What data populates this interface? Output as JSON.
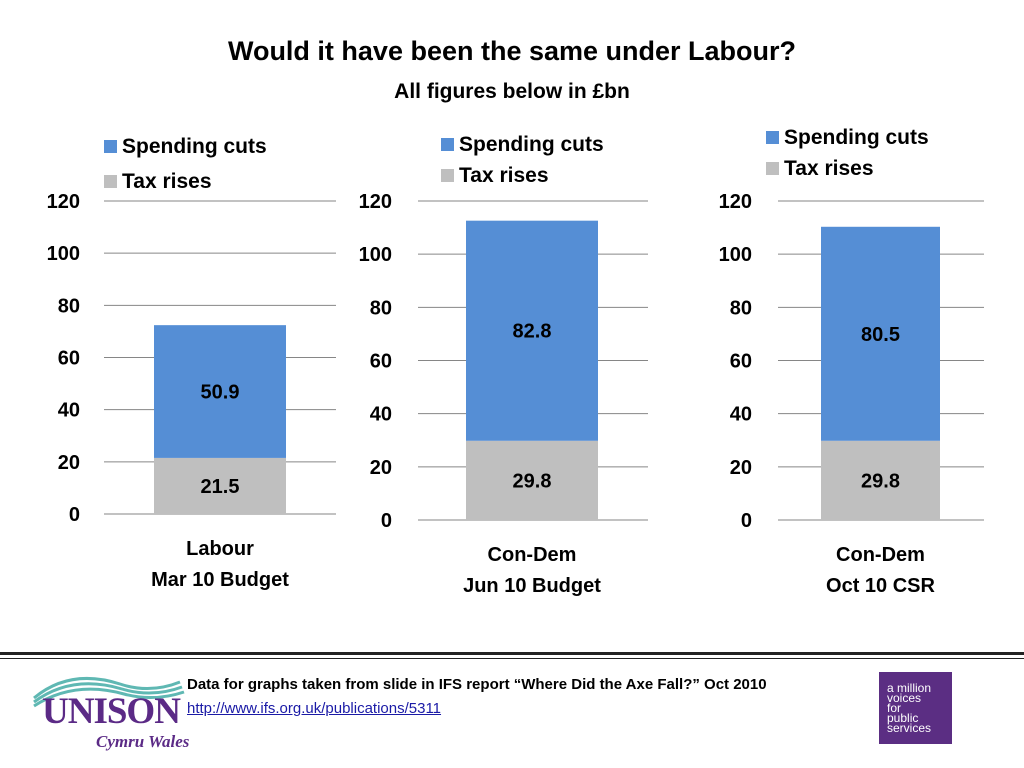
{
  "title": "Would it have been the same under Labour?",
  "subtitle": "All figures below in £bn",
  "colors": {
    "spending": "#558ed5",
    "tax": "#bfbfbf",
    "grid": "#868686",
    "logo_purple": "#5b2a86"
  },
  "chart_data": [
    {
      "type": "bar",
      "stacked": true,
      "categories": [
        "Labour\nMar 10 Budget"
      ],
      "series": [
        {
          "name": "Spending cuts",
          "values": [
            50.9
          ]
        },
        {
          "name": "Tax rises",
          "values": [
            21.5
          ]
        }
      ],
      "ylim": [
        0,
        120
      ],
      "yticks": [
        "0",
        "20",
        "40",
        "60",
        "80",
        "100",
        "120"
      ],
      "grid": true,
      "legend": "top-left"
    },
    {
      "type": "bar",
      "stacked": true,
      "categories": [
        "Con-Dem\nJun 10 Budget"
      ],
      "series": [
        {
          "name": "Spending cuts",
          "values": [
            82.8
          ]
        },
        {
          "name": "Tax rises",
          "values": [
            29.8
          ]
        }
      ],
      "ylim": [
        0,
        120
      ],
      "yticks": [
        "0",
        "20",
        "40",
        "60",
        "80",
        "100",
        "120"
      ],
      "grid": true,
      "legend": "top-center"
    },
    {
      "type": "bar",
      "stacked": true,
      "categories": [
        "Con-Dem\nOct 10 CSR"
      ],
      "series": [
        {
          "name": "Spending cuts",
          "values": [
            80.5
          ]
        },
        {
          "name": "Tax rises",
          "values": [
            29.8
          ]
        }
      ],
      "ylim": [
        0,
        120
      ],
      "yticks": [
        "0",
        "20",
        "40",
        "60",
        "80",
        "100",
        "120"
      ],
      "grid": true,
      "legend": "top-center"
    }
  ],
  "footer": {
    "source_text": "Data for graphs taken from slide in IFS report “Where Did the Axe Fall?” Oct 2010",
    "link_text": "http://www.ifs.org.uk/publications/5311",
    "logo_main": "UNISON",
    "logo_sub": "Cymru Wales",
    "logo_icon": "wave-stripes-icon",
    "badge_lines": [
      "a million",
      "voices",
      "for",
      "public",
      "services"
    ]
  }
}
